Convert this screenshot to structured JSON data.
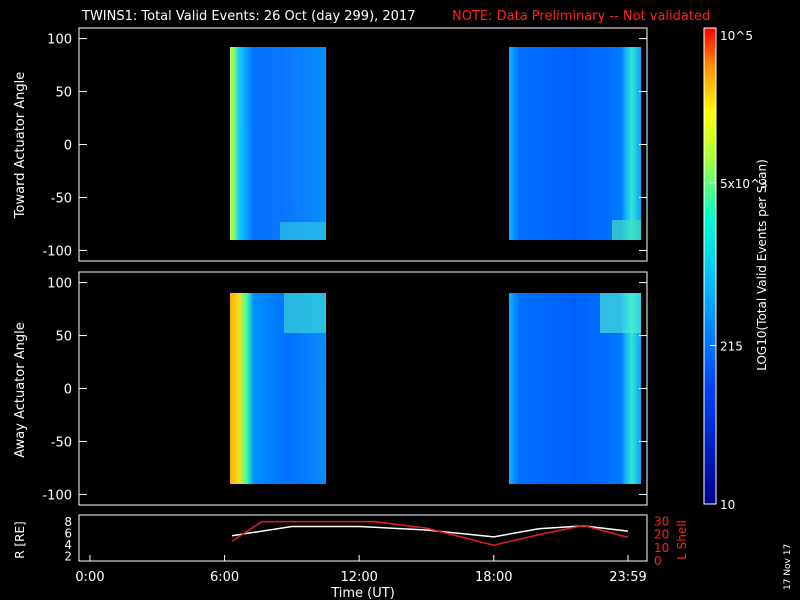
{
  "header": {
    "title": "TWINS1: Total Valid Events: 26 Oct (day 299), 2017",
    "note": "NOTE: Data Preliminary -- Not validated"
  },
  "colorbar": {
    "label": "LOG10(Total Valid Events per Scan)",
    "ticks": [
      "10",
      "215",
      "5x10^3",
      "10^5"
    ],
    "scale": "log",
    "range": [
      10,
      100000
    ]
  },
  "footer": {
    "date_stamp": "17 Nov 17"
  },
  "chart_data": [
    {
      "type": "heatmap",
      "name": "toward",
      "ylabel": "Toward Actuator Angle",
      "ylim": [
        -90,
        90
      ],
      "yticks": [
        "100",
        "50",
        "0",
        "-50",
        "-100"
      ],
      "xlim": [
        "0:00",
        "23:59"
      ],
      "blocks": [
        {
          "t_start": "6:20",
          "t_end": "10:25",
          "note": "yellow-green at start, fading to blue"
        },
        {
          "t_start": "18:05",
          "t_end": "23:59",
          "note": "mostly blue, cyan at end"
        }
      ]
    },
    {
      "type": "heatmap",
      "name": "away",
      "ylabel": "Away Actuator Angle",
      "ylim": [
        -90,
        90
      ],
      "yticks": [
        "100",
        "50",
        "0",
        "-50",
        "-100"
      ],
      "xlim": [
        "0:00",
        "23:59"
      ],
      "blocks": [
        {
          "t_start": "6:20",
          "t_end": "10:25",
          "note": "orange-yellow at start, blue after"
        },
        {
          "t_start": "18:05",
          "t_end": "23:59",
          "note": "mostly blue, cyan near top-right"
        }
      ]
    },
    {
      "type": "line",
      "name": "orbit",
      "ylabel": "R [RE]",
      "y2label": "L Shell",
      "xlabel": "Time (UT)",
      "xticks": [
        "0:00",
        "6:00",
        "12:00",
        "18:00",
        "23:59"
      ],
      "yticks": [
        "2",
        "4",
        "6",
        "8"
      ],
      "y2ticks": [
        "0",
        "10",
        "20",
        "30"
      ],
      "series": [
        {
          "name": "R",
          "color": "#ffffff",
          "x": [
            "6:20",
            "8:00",
            "9:00",
            "12:00",
            "15:00",
            "18:00",
            "20:00",
            "22:00",
            "23:59"
          ],
          "values": [
            5.4,
            6.4,
            7.0,
            7.0,
            6.4,
            5.2,
            6.6,
            7.1,
            6.2
          ]
        },
        {
          "name": "L Shell",
          "color": "#e02020",
          "x": [
            "6:20",
            "7:40",
            "12:40",
            "15:00",
            "18:00",
            "20:00",
            "22:00",
            "23:59"
          ],
          "values": [
            15,
            30,
            30,
            25,
            12,
            20,
            27,
            18
          ]
        }
      ]
    }
  ]
}
